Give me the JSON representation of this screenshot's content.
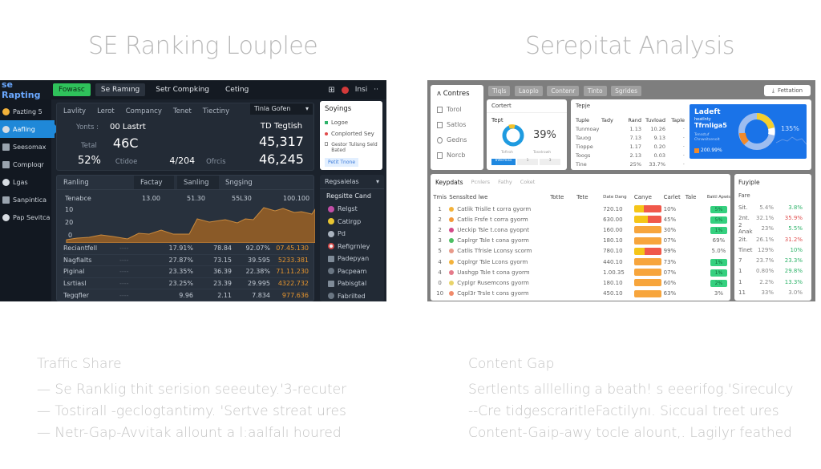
{
  "titles": {
    "left": "SE Ranking Louplee",
    "right": "Serepitat Analysis"
  },
  "left_dashboard": {
    "brand": "se Rapting",
    "topbar": {
      "buttons": [
        "Fowasc",
        "Se Ramıng",
        "Setr Compking",
        "Ceting"
      ],
      "right_user": "Insi",
      "more": "··"
    },
    "sidebar": [
      {
        "label": "Pazting 5",
        "icon": "warning-icon"
      },
      {
        "label": "Aafling",
        "icon": "ranking-icon",
        "active": true
      },
      {
        "label": "Seesomax",
        "icon": "user-icon"
      },
      {
        "label": "Comploqr",
        "icon": "compare-icon"
      },
      {
        "label": "Lgas",
        "icon": "globe-icon"
      },
      {
        "label": "Sanpintica",
        "icon": "chart-icon"
      },
      {
        "label": "Pap Sevitca",
        "icon": "service-icon"
      }
    ],
    "overview": {
      "headers": [
        "Lavlity",
        "Lerot",
        "Compancy",
        "Tenet",
        "Tiectiny"
      ],
      "row1_label": "Yonts :",
      "row1_value": "00 Lastrt",
      "row2_label": "Tetal",
      "row2_value": "46C",
      "row3_value": "52%",
      "row3_label": "Ctidoe",
      "row3_mid": "4/204",
      "row3_label2": "Ofrcis"
    },
    "dropdown": {
      "label": "Tinla Gofen",
      "icon": "chevron-down-icon"
    },
    "right_metrics": {
      "title": "TD Tegtish",
      "value1": "45,317",
      "value2": "46,245"
    },
    "settings_card": {
      "title": "Soyings",
      "options": [
        "Logoe",
        "Conplorted Sey",
        "Gestor Tulisng Seld Bated"
      ],
      "button": "Petit Tnone"
    },
    "chart_panel": {
      "tabs": [
        "Ranling",
        "Factay",
        "Sanling",
        "Sngşing"
      ],
      "y_label": "Tenabce",
      "y_ticks": [
        "10",
        "20",
        "0"
      ],
      "x_labels": [
        "13.00",
        "51.30",
        "55L30",
        "100.100"
      ],
      "table": [
        {
          "name": "Reciantfell",
          "dash": "----",
          "v1": "17.91%",
          "v2": "78.84",
          "v3": "92.07%",
          "v4": "07.45.130"
        },
        {
          "name": "Nagfialts",
          "dash": "----",
          "v1": "27.87%",
          "v2": "73.15",
          "v3": "39.595",
          "v4": "5233.381"
        },
        {
          "name": "Piginal",
          "dash": "----",
          "v1": "23.35%",
          "v2": "36.39",
          "v3": "22.38%",
          "v4": "71.11.230"
        },
        {
          "name": "Lsrtiasl",
          "dash": "----",
          "v1": "23.25%",
          "v2": "23.39",
          "v3": "29.995",
          "v4": "4322.732"
        },
        {
          "name": "Tegqfler",
          "dash": "----",
          "v1": "9.96",
          "v2": "2.11",
          "v3": "7.834",
          "v4": "977.636"
        }
      ]
    },
    "right_panel": {
      "header": "Regsaielas",
      "sub": "Regsitte Cand",
      "items": [
        {
          "label": "Relgst",
          "color": "#c24ea6"
        },
        {
          "label": "Catirgp",
          "color": "#e8c531"
        },
        {
          "label": "Pd",
          "color": "#aab4c0"
        },
        {
          "label": "Refigrnley",
          "color": "#f2f2f2"
        },
        {
          "label": "Padepyan",
          "color": "#7f8b98"
        },
        {
          "label": "Pacpeam",
          "color": "#6a7683"
        },
        {
          "label": "Pabisgtal",
          "color": "#7f8b98"
        },
        {
          "label": "Fabrilted",
          "color": "#6a7683"
        }
      ]
    }
  },
  "right_dashboard": {
    "sidebar": {
      "title": "Contres",
      "items": [
        "Torol",
        "Satlos",
        "Gedns",
        "Norcb"
      ]
    },
    "tabs": [
      "Tlqls",
      "Laoplo",
      "Contenr",
      "Tinto",
      "Sgrides"
    ],
    "export_button": "Fettation",
    "content_card": {
      "title": "Cortert",
      "label": "Tept",
      "percent": "39%",
      "sub_labels": [
        "Tofiroh",
        "Toselrowh"
      ],
      "buttons": [
        "Infermiss",
        "1",
        "3"
      ]
    },
    "topic_card": {
      "title": "Tepje",
      "headers": [
        "Tuple",
        "Tady",
        "Rand",
        "Tuvload",
        "Taple"
      ],
      "rows": [
        [
          "Tunmoay",
          "",
          "1.13",
          "10.26",
          "·"
        ],
        [
          "Tauog",
          "",
          "7.13",
          "9.13",
          "·"
        ],
        [
          "Tioppe",
          "",
          "1.17",
          "0.20",
          "·"
        ],
        [
          "Toogs",
          "",
          "2.13",
          "0.03",
          "·"
        ],
        [
          "Tine",
          "",
          "25%",
          "33.7%",
          "·"
        ]
      ]
    },
    "blue_card": {
      "title": "Ladeft",
      "subtitle": "heatlnty",
      "title2": "Tfrnliga5",
      "desc": "Tensstuf Chnwsitsenolt",
      "badge": "200.99%",
      "percent": "135%"
    },
    "keywords": {
      "title": "Keypdats",
      "tabs": [
        "Pcnlers",
        "Fathy",
        "Coket"
      ],
      "headers": [
        "Tmis",
        "Sensslted lwe",
        "Totte",
        "Tete",
        "Date Dang",
        "Canye",
        "Carlet",
        "Tale",
        "Baktl Apwis"
      ],
      "rows": [
        {
          "n": "1",
          "dot": "#f3b23a",
          "name": "Catlik Trislle t corra gyorm",
          "date": "720.10",
          "bar": [
            35,
            65
          ],
          "pct": "10%",
          "pill": "5%",
          "pill_on": true
        },
        {
          "n": "2",
          "dot": "#f39a3a",
          "name": "Catlis Frsfe t corra gyorm",
          "date": "630.00",
          "bar": [
            50,
            50
          ],
          "pct": "45%",
          "pill": "5%",
          "pill_on": true
        },
        {
          "n": "2",
          "dot": "#d34a89",
          "name": "Ueckip Tsle t.cona gyopnt",
          "date": "160.00",
          "bar": [
            0,
            0
          ],
          "pct": "30%",
          "pill": "1%",
          "pill_on": true
        },
        {
          "n": "3",
          "dot": "#4cbf63",
          "name": "Caplrgr Tsle t cona gyorm",
          "date": "180.10",
          "bar": [
            0,
            0
          ],
          "pct": "07%",
          "pill": "69%",
          "pill_on": false
        },
        {
          "n": "5",
          "dot": "#e89a8a",
          "name": "Catlis Tfrisle Lconsy scorm",
          "date": "780.10",
          "bar": [
            38,
            62
          ],
          "pct": "99%",
          "pill": "5.0%",
          "pill_on": false
        },
        {
          "n": "4",
          "dot": "#f3b23a",
          "name": "Cqplrgr Tsle Lcons gyorm",
          "date": "440.10",
          "bar": [
            0,
            0
          ],
          "pct": "73%",
          "pill": "1%",
          "pill_on": true
        },
        {
          "n": "4",
          "dot": "#e57a8a",
          "name": "Uashgp Tsle t cona gyorm",
          "date": "1.00.35",
          "bar": [
            0,
            0
          ],
          "pct": "07%",
          "pill": "1%",
          "pill_on": true
        },
        {
          "n": "0",
          "dot": "#e8d36a",
          "name": "Cyplgr Rusemcons gyorm",
          "date": "180.10",
          "bar": [
            0,
            0
          ],
          "pct": "60%",
          "pill": "2%",
          "pill_on": true
        },
        {
          "n": "10",
          "dot": "#f08a6a",
          "name": "Cqpl3r Trsle t cons gyorm",
          "date": "450.10",
          "bar": [
            0,
            0
          ],
          "pct": "63%",
          "pill": "3%",
          "pill_on": false
        }
      ]
    },
    "funnels": {
      "title": "Fuyiple",
      "sub": "Fare",
      "rows": [
        {
          "a": "Sit.",
          "b": "5.4%",
          "c": "3.8%",
          "color": "#2fb36a"
        },
        {
          "a": "2nt.",
          "b": "32.1%",
          "c": "35.9%",
          "color": "#e05050"
        },
        {
          "a": "2 Anak",
          "b": "23%",
          "c": "5.5%",
          "color": "#2fb36a"
        },
        {
          "a": "2it.",
          "b": "26.1%",
          "c": "31.2%",
          "color": "#e05050"
        },
        {
          "a": "Tinet",
          "b": "129%",
          "c": "10%",
          "color": "#2fb36a"
        },
        {
          "a": "7",
          "b": "23.7%",
          "c": "23.3%",
          "color": "#2fb36a"
        },
        {
          "a": "1",
          "b": "0.80%",
          "c": "29.8%",
          "color": "#2fb36a"
        },
        {
          "a": "1",
          "b": "2.2%",
          "c": "13.3%",
          "color": "#2fb36a"
        },
        {
          "a": "11",
          "b": "33%",
          "c": "3.0%",
          "color": "#888888"
        }
      ]
    }
  },
  "captions": {
    "left": {
      "heading": "Traffic Share",
      "lines": [
        "— Se Ranklig thit serision seeeutey.'3-recuter",
        "— Tostirall -geclogtantimy. 'Sertve streat ures",
        "— Netr-Gap-Avvitak allount a l:aalfalı houred"
      ]
    },
    "right": {
      "heading": "Content Gap",
      "lines": [
        "Sertlents alllelling a beath! s eeerifog.'Sireculcy",
        "--Cre tidgescraritleFactilynı. Siccual treet ures",
        "Content-Gaip-awy tocle alount,. Lagilyr feathed"
      ]
    }
  },
  "colors": {
    "dark_bg": "#1b222c",
    "accent_blue": "#1f88d8",
    "accent_green": "#2fc25b",
    "chart_fill": "#8a5a28",
    "chart_line": "#c98a3e",
    "orange_value": "#e8962e",
    "light_blue_card": "#1a73e8"
  }
}
